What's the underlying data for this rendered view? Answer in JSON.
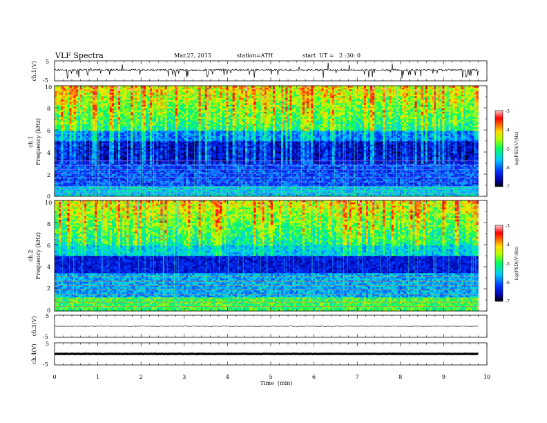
{
  "header": {
    "title": "VLF Spectra",
    "date": "Mar.27, 2015",
    "station": "station=ATH",
    "start": "start  UT =   2 :30: 0"
  },
  "chart_data": [
    {
      "type": "line",
      "id": "ch1-waveform",
      "ylabel": "ch.1(V)",
      "yticks": [
        "5",
        "-5"
      ],
      "ylim": [
        -5,
        5
      ],
      "xlim": [
        0,
        10
      ],
      "data_extent_min": 9.8,
      "trace": "noisy baseline near +0.5 V with frequent negative spikes"
    },
    {
      "type": "heatmap",
      "id": "ch1-spectrogram",
      "ylabel": "ch.1 Frequency (kHz)",
      "ylabel_line1": "ch.1",
      "ylabel_line2": "Frequency (kHz)",
      "yticks": [
        "0",
        "2",
        "4",
        "6",
        "8",
        "10"
      ],
      "ylim": [
        0,
        10
      ],
      "xlim": [
        0,
        10
      ],
      "data_extent_min": 9.8,
      "colorbar": {
        "label": "log(PSD)(V²/Hz)",
        "ticks": [
          "-3",
          "-4",
          "-5",
          "-6",
          "-7"
        ],
        "range": [
          -7,
          -3
        ]
      }
    },
    {
      "type": "heatmap",
      "id": "ch2-spectrogram",
      "ylabel": "ch.2 Frequency (kHz)",
      "ylabel_line1": "ch.2",
      "ylabel_line2": "Frequency (kHz)",
      "yticks": [
        "0",
        "2",
        "4",
        "6",
        "8",
        "10"
      ],
      "ylim": [
        0,
        10
      ],
      "xlim": [
        0,
        10
      ],
      "data_extent_min": 9.8,
      "colorbar": {
        "label": "log(PSD)(V²/Hz)",
        "ticks": [
          "-3",
          "-4",
          "-5",
          "-6",
          "-7"
        ],
        "range": [
          -7,
          -3
        ]
      }
    },
    {
      "type": "line",
      "id": "ch3-waveform",
      "ylabel": "ch.3(V)",
      "yticks": [
        "5",
        "-5"
      ],
      "ylim": [
        -5,
        5
      ],
      "xlim": [
        0,
        10
      ],
      "data_extent_min": 9.8,
      "trace": "flat near 0 V"
    },
    {
      "type": "line",
      "id": "ch4-waveform",
      "ylabel": "ch.4(V)",
      "yticks": [
        "5",
        "-5"
      ],
      "ylim": [
        -5,
        5
      ],
      "xlim": [
        0,
        10
      ],
      "data_extent_min": 9.8,
      "trace": "thick flat band near 0 V"
    }
  ],
  "xaxis": {
    "label": "Time  (min)",
    "ticks": [
      "0",
      "1",
      "2",
      "3",
      "4",
      "5",
      "6",
      "7",
      "8",
      "9",
      "10"
    ]
  }
}
